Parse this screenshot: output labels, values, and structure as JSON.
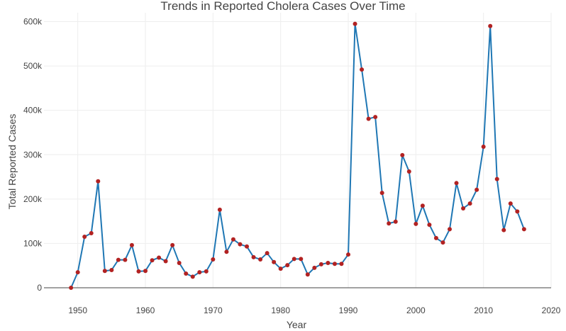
{
  "chart_data": {
    "type": "line",
    "title": "Trends in Reported Cholera Cases Over Time",
    "xlabel": "Year",
    "ylabel": "Total Reported Cases",
    "xlim": [
      1945,
      2020
    ],
    "ylim": [
      0,
      620000
    ],
    "x_ticks": [
      1950,
      1960,
      1970,
      1980,
      1990,
      2000,
      2010,
      2020
    ],
    "x_tick_labels": [
      "1950",
      "1960",
      "1970",
      "1980",
      "1990",
      "2000",
      "2010",
      "2020"
    ],
    "y_ticks": [
      0,
      100000,
      200000,
      300000,
      400000,
      500000,
      600000
    ],
    "y_tick_labels": [
      "0",
      "100k",
      "200k",
      "300k",
      "400k",
      "500k",
      "600k"
    ],
    "grid": true,
    "legend": "none",
    "line_color": "#1f77b4",
    "marker_color": "#b22222",
    "x": [
      1949,
      1950,
      1951,
      1952,
      1953,
      1954,
      1955,
      1956,
      1957,
      1958,
      1959,
      1960,
      1961,
      1962,
      1963,
      1964,
      1965,
      1966,
      1967,
      1968,
      1969,
      1970,
      1971,
      1972,
      1973,
      1974,
      1975,
      1976,
      1977,
      1978,
      1979,
      1980,
      1981,
      1982,
      1983,
      1984,
      1985,
      1986,
      1987,
      1988,
      1989,
      1990,
      1991,
      1992,
      1993,
      1994,
      1995,
      1996,
      1997,
      1998,
      1999,
      2000,
      2001,
      2002,
      2003,
      2004,
      2005,
      2006,
      2007,
      2008,
      2009,
      2010,
      2011,
      2012,
      2013,
      2014,
      2015,
      2016
    ],
    "values": [
      0,
      35000,
      115000,
      123000,
      240000,
      38000,
      40000,
      63000,
      63000,
      96000,
      37000,
      38000,
      62000,
      68000,
      60000,
      96000,
      56000,
      32000,
      25000,
      35000,
      37000,
      64000,
      176000,
      81000,
      109000,
      98000,
      93000,
      69000,
      64000,
      78000,
      58000,
      43000,
      51000,
      65000,
      65000,
      30000,
      45000,
      53000,
      56000,
      54000,
      54000,
      75000,
      595000,
      492000,
      381000,
      385000,
      214000,
      145000,
      149000,
      299000,
      262000,
      144000,
      185000,
      142000,
      112000,
      102000,
      132000,
      236000,
      179000,
      190000,
      221000,
      318000,
      590000,
      245000,
      130000,
      190000,
      172000,
      132000
    ]
  }
}
